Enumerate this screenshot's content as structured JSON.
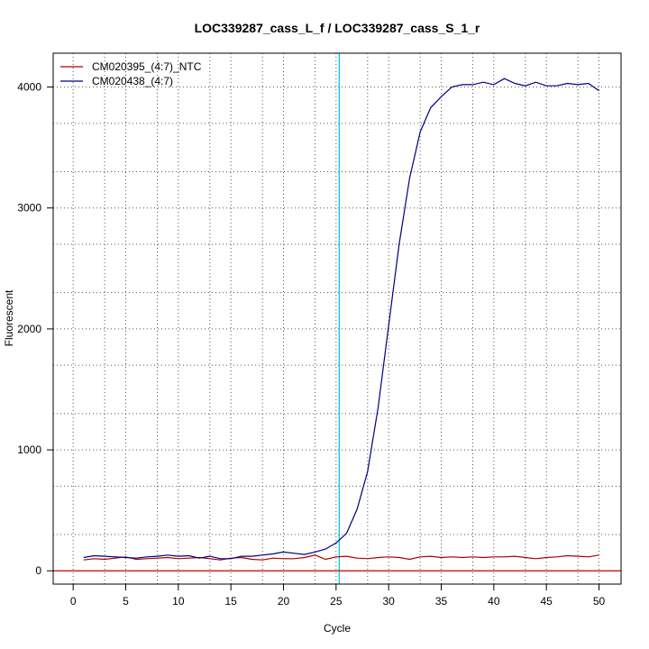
{
  "chart_data": {
    "type": "line",
    "title": "LOC339287_cass_L_f / LOC339287_cass_S_1_r",
    "xlabel": "Cycle",
    "ylabel": "Fluorescent",
    "xlim": [
      -1.9,
      52.1
    ],
    "ylim": [
      -110,
      4280
    ],
    "xticks": [
      0,
      5,
      10,
      15,
      20,
      25,
      30,
      35,
      40,
      45,
      50
    ],
    "yticks": [
      0,
      1000,
      2000,
      3000,
      4000
    ],
    "x_minor_grid": [
      3,
      8,
      13,
      18,
      23,
      28,
      33,
      38,
      43,
      48
    ],
    "y_minor_grid": [
      300,
      700,
      1300,
      1700,
      2300,
      2700,
      3300,
      3700
    ],
    "grid": true,
    "legend_position": "top-left",
    "threshold": {
      "x": 25.3,
      "color": "#00ccdd"
    },
    "baseline": {
      "y": 0,
      "color": "#cc0000"
    },
    "x": [
      1,
      2,
      3,
      4,
      5,
      6,
      7,
      8,
      9,
      10,
      11,
      12,
      13,
      14,
      15,
      16,
      17,
      18,
      19,
      20,
      21,
      22,
      23,
      24,
      25,
      26,
      27,
      28,
      29,
      30,
      31,
      32,
      33,
      34,
      35,
      36,
      37,
      38,
      39,
      40,
      41,
      42,
      43,
      44,
      45,
      46,
      47,
      48,
      49,
      50
    ],
    "series": [
      {
        "name": "CM020395_(4:7)_NTC",
        "color": "#aa0000",
        "values": [
          90,
          100,
          95,
          105,
          115,
          95,
          100,
          105,
          110,
          100,
          105,
          110,
          100,
          90,
          105,
          110,
          95,
          90,
          105,
          100,
          100,
          110,
          130,
          95,
          115,
          120,
          105,
          100,
          110,
          115,
          110,
          95,
          115,
          120,
          110,
          115,
          110,
          115,
          110,
          115,
          115,
          120,
          110,
          100,
          110,
          115,
          125,
          120,
          115,
          130
        ]
      },
      {
        "name": "CM020438_(4:7)",
        "color": "#000080",
        "values": [
          110,
          125,
          120,
          115,
          110,
          105,
          115,
          120,
          130,
          120,
          125,
          105,
          120,
          100,
          100,
          120,
          120,
          130,
          140,
          155,
          145,
          135,
          155,
          180,
          230,
          310,
          510,
          820,
          1350,
          2030,
          2700,
          3250,
          3630,
          3830,
          3920,
          4000,
          4020,
          4020,
          4040,
          4020,
          4070,
          4030,
          4010,
          4040,
          4010,
          4010,
          4030,
          4020,
          4030,
          3970
        ]
      }
    ]
  }
}
